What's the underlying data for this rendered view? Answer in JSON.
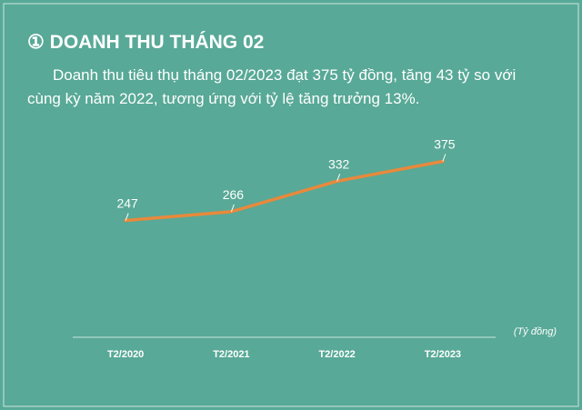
{
  "header": {
    "title": "① DOANH THU THÁNG 02"
  },
  "paragraph_lines": [
    "Doanh thu tiêu thụ tháng 02/2023 đạt 375 tỷ đồng, tăng 43 tỷ so với",
    "cùng kỳ năm 2022, tương ứng với tỷ lệ tăng trưởng 13%."
  ],
  "chart_data": {
    "type": "line",
    "categories": [
      "T2/2020",
      "T2/2021",
      "T2/2022",
      "T2/2023"
    ],
    "values": [
      247,
      266,
      332,
      375
    ],
    "color": "#e8893c",
    "unit_label": "(Tỷ đồng)"
  }
}
